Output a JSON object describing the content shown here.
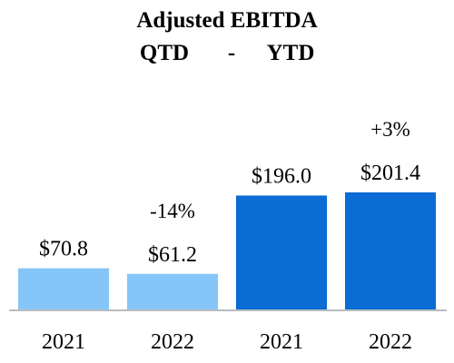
{
  "chart_data": {
    "type": "bar",
    "title": "Adjusted EBITDA",
    "subtitle_left": "QTD",
    "subtitle_sep": "-",
    "subtitle_right": "YTD",
    "categories": [
      "2021",
      "2022",
      "2021",
      "2022"
    ],
    "values": [
      70.8,
      61.2,
      196.0,
      201.4
    ],
    "value_labels": [
      "$70.8",
      "$61.2",
      "$196.0",
      "$201.4"
    ],
    "bar_colors": [
      "#85c5f7",
      "#85c5f7",
      "#0a6cd4",
      "#0a6cd4"
    ],
    "changes": [
      {
        "bar_index": 1,
        "label": "-14%"
      },
      {
        "bar_index": 3,
        "label": "+3%"
      }
    ],
    "groups": [
      "QTD",
      "YTD"
    ],
    "ylim": [
      0,
      201.4
    ],
    "grid": false,
    "axis_color": "#b8bcc0"
  }
}
